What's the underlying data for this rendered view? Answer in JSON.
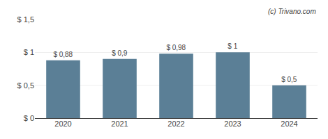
{
  "chart_data": {
    "type": "bar",
    "categories": [
      "2020",
      "2021",
      "2022",
      "2023",
      "2024"
    ],
    "values": [
      0.88,
      0.9,
      0.98,
      1.0,
      0.5
    ],
    "value_labels": [
      "$ 0,88",
      "$ 0,9",
      "$ 0,98",
      "$ 1",
      "$ 0,5"
    ],
    "data_labels": true,
    "color": "#5b7f96",
    "ylim": [
      0,
      1.5
    ],
    "yticks": [
      {
        "value": 0,
        "label": "$ 0"
      },
      {
        "value": 0.5,
        "label": "$ 0,5"
      },
      {
        "value": 1.0,
        "label": "$ 1"
      },
      {
        "value": 1.5,
        "label": "$ 1,5"
      }
    ],
    "grid": true,
    "annotations": [
      "(c) Trivano.com"
    ]
  }
}
